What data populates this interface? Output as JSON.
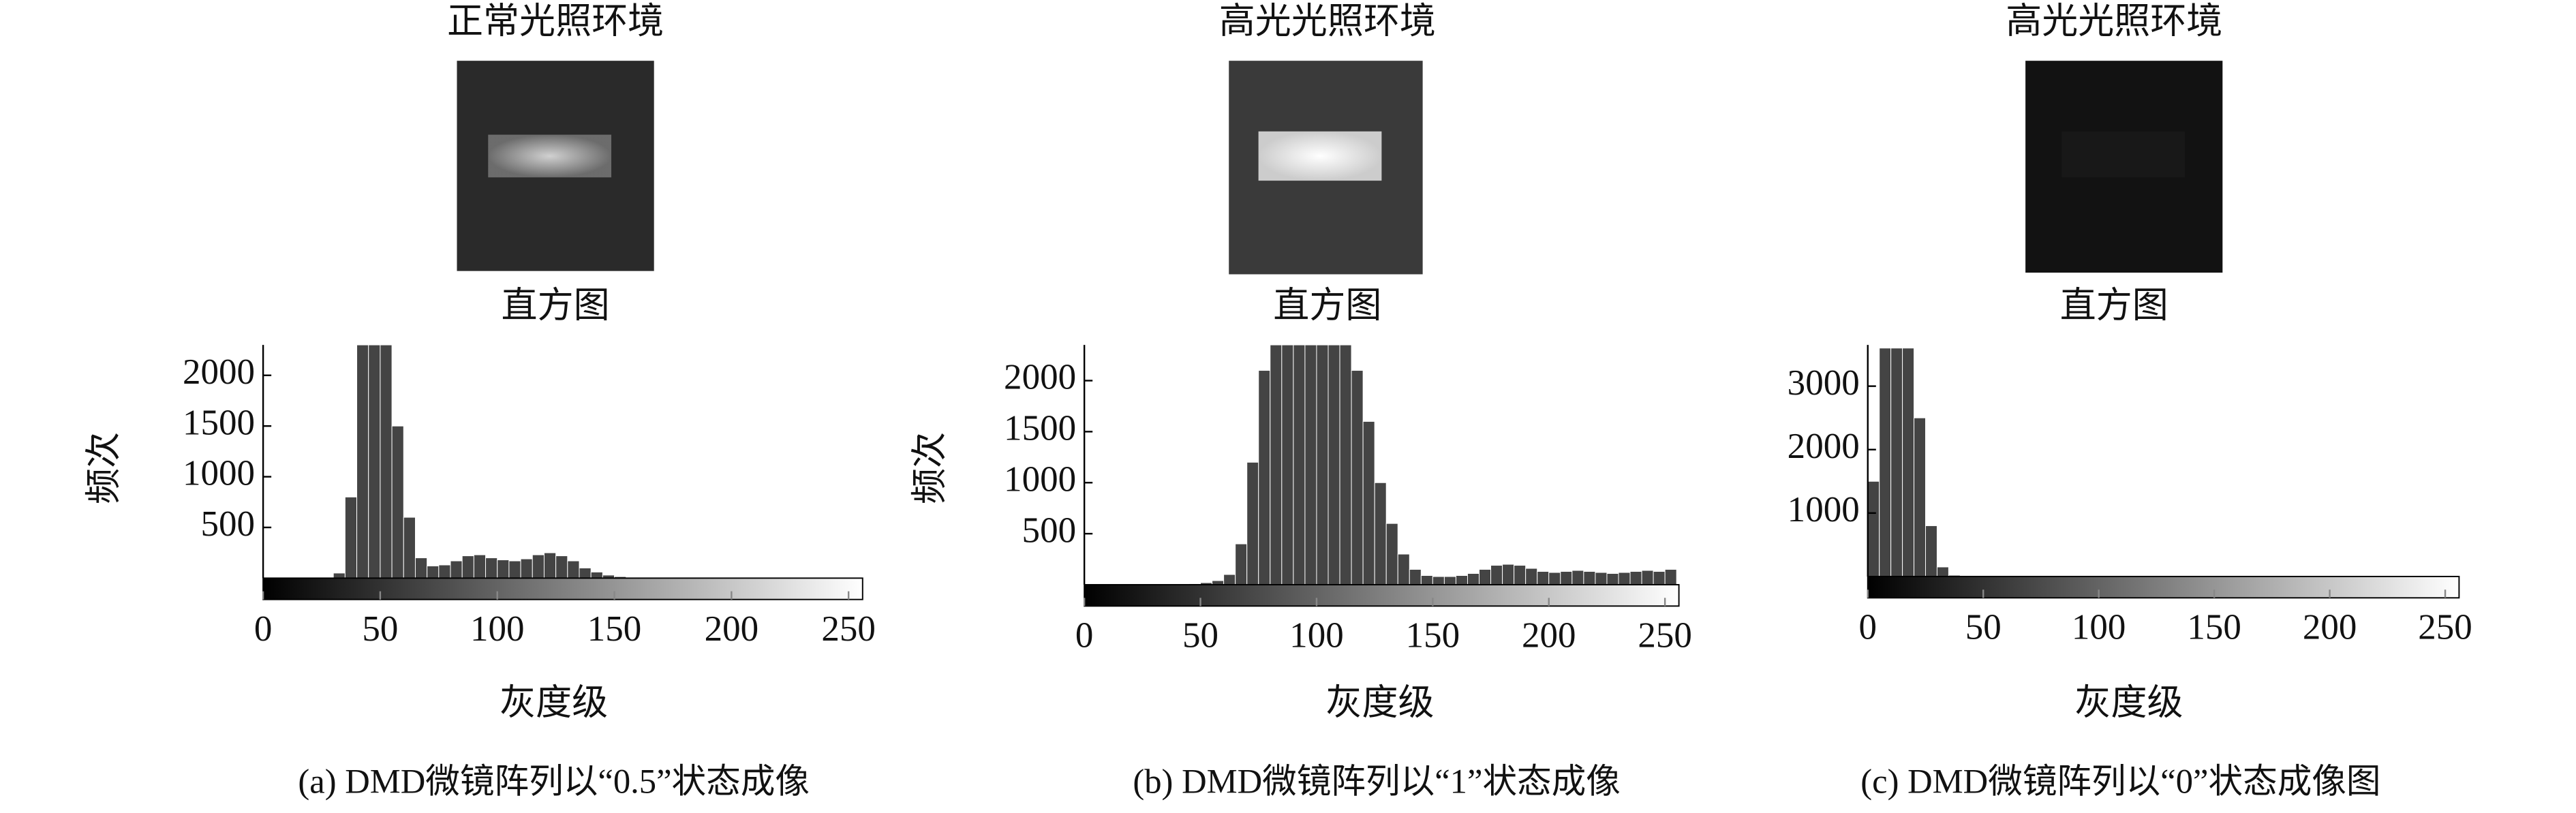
{
  "chart_data": [
    {
      "type": "histogram",
      "title": "正常光照环境",
      "subtitle": "直方图",
      "y_label": "频次",
      "x_label": "灰度级",
      "caption": "(a) DMD微镜阵列以“0.5”状态成像",
      "bins": [
        0,
        5,
        10,
        15,
        20,
        25,
        30,
        35,
        40,
        45,
        50,
        55,
        60,
        65,
        70,
        75,
        80,
        85,
        90,
        95,
        100,
        105,
        110,
        115,
        120,
        125,
        130,
        135,
        140,
        145,
        150,
        155,
        160,
        165,
        170,
        175,
        180,
        185,
        190,
        195,
        200,
        205,
        210,
        215,
        220,
        225,
        230,
        235,
        240,
        245,
        250,
        255
      ],
      "values": [
        0,
        0,
        0,
        0,
        0,
        0,
        50,
        800,
        2300,
        2300,
        2300,
        1500,
        600,
        200,
        120,
        130,
        170,
        220,
        230,
        200,
        180,
        170,
        190,
        230,
        250,
        220,
        170,
        100,
        60,
        30,
        15,
        0,
        0,
        0,
        0,
        0,
        0,
        0,
        0,
        0,
        0,
        0,
        0,
        0,
        0,
        0,
        0,
        0,
        0,
        0,
        0
      ],
      "xlim": [
        0,
        256
      ],
      "ylim": [
        0,
        2300
      ],
      "xticks": [
        0,
        50,
        100,
        150,
        200,
        250
      ],
      "yticks": [
        500,
        1000,
        1500,
        2000
      ],
      "color": "#444444"
    },
    {
      "type": "histogram",
      "title": "高光光照环境",
      "subtitle": "直方图",
      "y_label": "频次",
      "x_label": "灰度级",
      "caption": "(b) DMD微镜阵列以“1”状态成像",
      "bins": [
        0,
        5,
        10,
        15,
        20,
        25,
        30,
        35,
        40,
        45,
        50,
        55,
        60,
        65,
        70,
        75,
        80,
        85,
        90,
        95,
        100,
        105,
        110,
        115,
        120,
        125,
        130,
        135,
        140,
        145,
        150,
        155,
        160,
        165,
        170,
        175,
        180,
        185,
        190,
        195,
        200,
        205,
        210,
        215,
        220,
        225,
        230,
        235,
        240,
        245,
        250,
        255
      ],
      "values": [
        0,
        0,
        0,
        0,
        0,
        0,
        0,
        0,
        0,
        10,
        20,
        40,
        100,
        400,
        1200,
        2100,
        2350,
        2350,
        2350,
        2350,
        2350,
        2350,
        2350,
        2100,
        1600,
        1000,
        600,
        300,
        150,
        90,
        80,
        80,
        90,
        110,
        150,
        190,
        200,
        190,
        160,
        130,
        120,
        130,
        140,
        130,
        120,
        110,
        120,
        130,
        140,
        130,
        150
      ],
      "xlim": [
        0,
        256
      ],
      "ylim": [
        0,
        2350
      ],
      "xticks": [
        0,
        50,
        100,
        150,
        200,
        250
      ],
      "yticks": [
        500,
        1000,
        1500,
        2000
      ],
      "color": "#444444"
    },
    {
      "type": "histogram",
      "title": "高光光照环境",
      "subtitle": "直方图",
      "x_label": "灰度级",
      "caption": "(c) DMD微镜阵列以“0”状态成像图",
      "bins": [
        0,
        5,
        10,
        15,
        20,
        25,
        30,
        35,
        40,
        45,
        50,
        55,
        60,
        65,
        70,
        75,
        80,
        85,
        90,
        95,
        100,
        105,
        110,
        115,
        120,
        125,
        130,
        135,
        140,
        145,
        150,
        155,
        160,
        165,
        170,
        175,
        180,
        185,
        190,
        195,
        200,
        205,
        210,
        215,
        220,
        225,
        230,
        235,
        240,
        245,
        250,
        255
      ],
      "values": [
        1500,
        3600,
        3600,
        3600,
        2500,
        800,
        150,
        20,
        0,
        0,
        0,
        0,
        0,
        0,
        0,
        0,
        0,
        0,
        0,
        0,
        0,
        0,
        0,
        0,
        0,
        0,
        0,
        0,
        0,
        0,
        0,
        0,
        0,
        0,
        0,
        0,
        0,
        0,
        0,
        0,
        0,
        0,
        0,
        0,
        0,
        0,
        0,
        0,
        0,
        0,
        0
      ],
      "xlim": [
        0,
        256
      ],
      "ylim": [
        0,
        3650
      ],
      "xticks": [
        0,
        50,
        100,
        150,
        200,
        250
      ],
      "yticks": [
        1000,
        2000,
        3000
      ],
      "color": "#444444"
    }
  ]
}
